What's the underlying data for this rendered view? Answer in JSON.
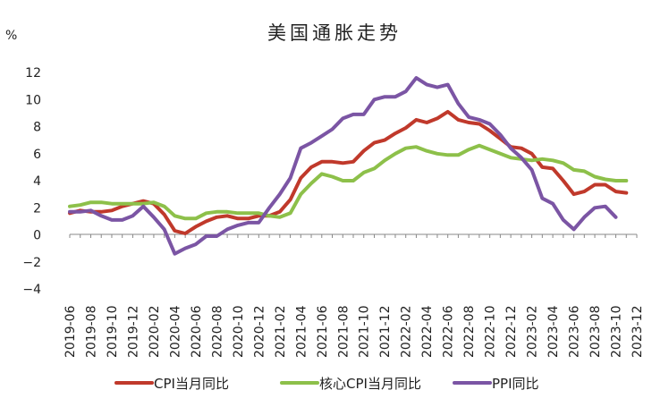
{
  "chart_data": {
    "type": "line",
    "title": "美国通胀走势",
    "ylabel": "%",
    "xlabel": "",
    "ylim": [
      -4,
      12
    ],
    "yticks": [
      -4,
      -2,
      0,
      2,
      4,
      6,
      8,
      10,
      12
    ],
    "grid": false,
    "legend_position": "bottom",
    "x": [
      "2019-06",
      "2019-07",
      "2019-08",
      "2019-09",
      "2019-10",
      "2019-11",
      "2019-12",
      "2020-01",
      "2020-02",
      "2020-03",
      "2020-04",
      "2020-05",
      "2020-06",
      "2020-07",
      "2020-08",
      "2020-09",
      "2020-10",
      "2020-11",
      "2020-12",
      "2021-01",
      "2021-02",
      "2021-03",
      "2021-04",
      "2021-05",
      "2021-06",
      "2021-07",
      "2021-08",
      "2021-09",
      "2021-10",
      "2021-11",
      "2021-12",
      "2022-01",
      "2022-02",
      "2022-03",
      "2022-04",
      "2022-05",
      "2022-06",
      "2022-07",
      "2022-08",
      "2022-09",
      "2022-10",
      "2022-11",
      "2022-12",
      "2023-01",
      "2023-02",
      "2023-03",
      "2023-04",
      "2023-05",
      "2023-06",
      "2023-07",
      "2023-08",
      "2023-09",
      "2023-10",
      "2023-11",
      "2023-12"
    ],
    "xtick_labels": [
      "2019-06",
      "2019-08",
      "2019-10",
      "2019-12",
      "2020-02",
      "2020-04",
      "2020-06",
      "2020-08",
      "2020-10",
      "2020-12",
      "2021-02",
      "2021-04",
      "2021-06",
      "2021-08",
      "2021-10",
      "2021-12",
      "2022-02",
      "2022-04",
      "2022-06",
      "2022-08",
      "2022-10",
      "2022-12",
      "2023-02",
      "2023-04",
      "2023-06",
      "2023-08",
      "2023-10",
      "2023-12"
    ],
    "series": [
      {
        "name": "CPI当月同比",
        "color": "#c0392b",
        "values": [
          1.6,
          1.8,
          1.7,
          1.7,
          1.8,
          2.1,
          2.3,
          2.5,
          2.3,
          1.5,
          0.3,
          0.1,
          0.6,
          1.0,
          1.3,
          1.4,
          1.2,
          1.2,
          1.4,
          1.4,
          1.7,
          2.6,
          4.2,
          5.0,
          5.4,
          5.4,
          5.3,
          5.4,
          6.2,
          6.8,
          7.0,
          7.5,
          7.9,
          8.5,
          8.3,
          8.6,
          9.1,
          8.5,
          8.3,
          8.2,
          7.7,
          7.1,
          6.5,
          6.4,
          6.0,
          5.0,
          4.9,
          4.0,
          3.0,
          3.2,
          3.7,
          3.7,
          3.2,
          3.1,
          null
        ]
      },
      {
        "name": "核心CPI当月同比",
        "color": "#8dc04a",
        "values": [
          2.1,
          2.2,
          2.4,
          2.4,
          2.3,
          2.3,
          2.3,
          2.3,
          2.4,
          2.1,
          1.4,
          1.2,
          1.2,
          1.6,
          1.7,
          1.7,
          1.6,
          1.6,
          1.6,
          1.4,
          1.3,
          1.6,
          3.0,
          3.8,
          4.5,
          4.3,
          4.0,
          4.0,
          4.6,
          4.9,
          5.5,
          6.0,
          6.4,
          6.5,
          6.2,
          6.0,
          5.9,
          5.9,
          6.3,
          6.6,
          6.3,
          6.0,
          5.7,
          5.6,
          5.5,
          5.6,
          5.5,
          5.3,
          4.8,
          4.7,
          4.3,
          4.1,
          4.0,
          4.0,
          null
        ]
      },
      {
        "name": "PPI同比",
        "color": "#7b55a4",
        "values": [
          1.7,
          1.7,
          1.8,
          1.4,
          1.1,
          1.1,
          1.4,
          2.1,
          1.3,
          0.4,
          -1.4,
          -1.0,
          -0.7,
          -0.1,
          -0.1,
          0.4,
          0.7,
          0.9,
          0.9,
          2.0,
          3.0,
          4.2,
          6.4,
          6.8,
          7.3,
          7.8,
          8.6,
          8.9,
          8.9,
          10.0,
          10.2,
          10.2,
          10.6,
          11.6,
          11.1,
          10.9,
          11.1,
          9.7,
          8.7,
          8.5,
          8.2,
          7.4,
          6.4,
          5.7,
          4.8,
          2.7,
          2.3,
          1.1,
          0.4,
          1.3,
          2.0,
          2.1,
          1.3,
          null,
          null
        ]
      }
    ]
  }
}
